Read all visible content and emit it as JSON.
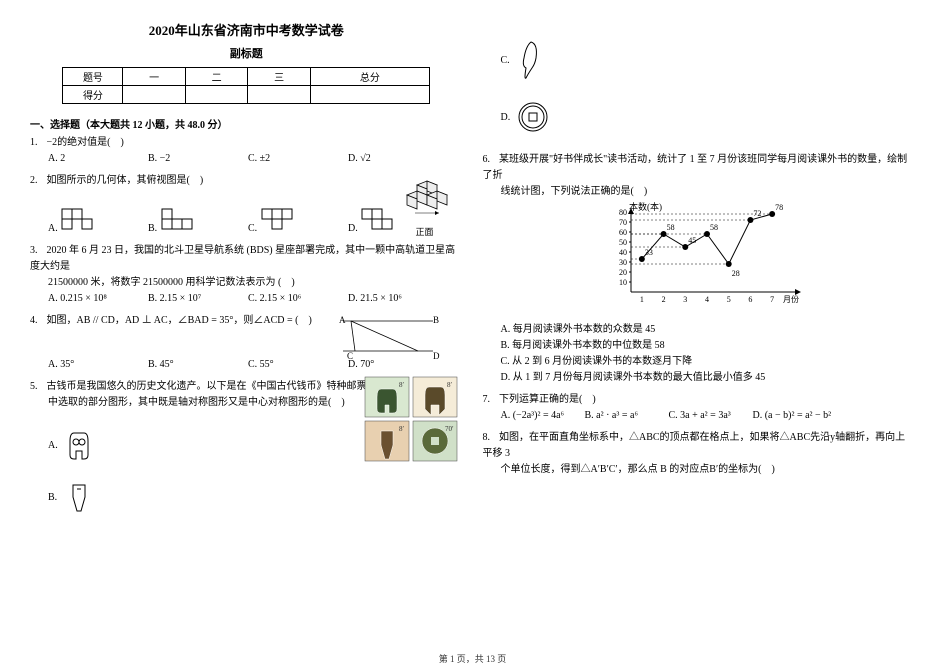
{
  "header": {
    "title": "2020年山东省济南市中考数学试卷",
    "subtitle": "副标题"
  },
  "score_table": {
    "row1": [
      "题号",
      "一",
      "二",
      "三",
      "总分"
    ],
    "row2": [
      "得分",
      "",
      "",
      "",
      ""
    ]
  },
  "section1": {
    "heading": "一、选择题（本大题共 12 小题，共 48.0 分）"
  },
  "questions": {
    "q1": {
      "num": "1.",
      "text": "−2的绝对值是(　)",
      "opts": {
        "a": "A. 2",
        "b": "B. −2",
        "c": "C. ±2",
        "d": "D. √2"
      }
    },
    "q2": {
      "num": "2.",
      "text": "如图所示的几何体，其俯视图是(　)",
      "front_label": "正面",
      "opts": {
        "a": "A.",
        "b": "B.",
        "c": "C.",
        "d": "D."
      }
    },
    "q3": {
      "num": "3.",
      "text_a": "2020 年 6 月 23 日，我国的北斗卫星导航系统 (BDS) 星座部署完成，其中一颗中高轨道卫星高度大约是",
      "text_b": "21500000 米，将数字 21500000 用科学记数法表示为 (　)",
      "opts": {
        "a": "A. 0.215 × 10⁸",
        "b": "B. 2.15 × 10⁷",
        "c": "C. 2.15 × 10⁶",
        "d": "D. 21.5 × 10⁶"
      }
    },
    "q4": {
      "num": "4.",
      "text": "如图，AB // CD，AD ⊥ AC，∠BAD = 35°，则∠ACD = (　)",
      "opts": {
        "a": "A. 35°",
        "b": "B. 45°",
        "c": "C. 55°",
        "d": "D. 70°"
      },
      "labels": {
        "A": "A",
        "B": "B",
        "C": "C",
        "D": "D"
      }
    },
    "q5": {
      "num": "5.",
      "text_a": "古钱币是我国悠久的历史文化遗产。以下是在《中国古代钱币》特种邮票",
      "text_b": "中选取的部分图形，其中既是轴对称图形又是中心对称图形的是(　)",
      "opts": {
        "a": "A.",
        "b": "B.",
        "c": "C.",
        "d": "D."
      },
      "stamp_vals": {
        "s1": "8′",
        "s2": "8′",
        "s3": "8′",
        "s4": "70′"
      }
    },
    "q6": {
      "num": "6.",
      "text_a": "某班级开展\"好书伴成长\"读书活动，统计了 1 至 7 月份该班同学每月阅读课外书的数量，绘制了折",
      "text_b": "线统计图，下列说法正确的是(　)",
      "chart": {
        "type": "line",
        "ylabel": "本数(本)",
        "xlabel": "月份",
        "x": [
          "1",
          "2",
          "3",
          "4",
          "5",
          "6",
          "7"
        ],
        "y": [
          33,
          58,
          45,
          58,
          28,
          72,
          78
        ],
        "point_labels": [
          "33",
          "58",
          "45",
          "58",
          "28",
          "72",
          "78"
        ],
        "ylim": [
          0,
          80
        ],
        "ytick_step": 10,
        "colors": {
          "line": "#000000",
          "grid": "#000000",
          "bg": "#ffffff",
          "text": "#000000"
        },
        "line_width": 1,
        "marker_size": 3
      },
      "opts": {
        "a": "A. 每月阅读课外书本数的众数是 45",
        "b": "B. 每月阅读课外书本数的中位数是 58",
        "c": "C. 从 2 到 6 月份阅读课外书的本数逐月下降",
        "d": "D. 从 1 到 7 月份每月阅读课外书本数的最大值比最小值多 45"
      }
    },
    "q7": {
      "num": "7.",
      "text": "下列运算正确的是(　)",
      "opts": {
        "a": "A. (−2a³)² = 4a⁶",
        "b": "B. a² · a³ = a⁶",
        "c": "C. 3a + a² = 3a³",
        "d": "D. (a − b)² = a² − b²"
      }
    },
    "q8": {
      "num": "8.",
      "text_a": "如图，在平面直角坐标系中，△ABC的顶点都在格点上，如果将△ABC先沿y轴翻折，再向上平移 3",
      "text_b": "个单位长度，得到△A′B′C′，那么点 B 的对应点B′的坐标为(　)"
    }
  },
  "footer": "第 1 页，共 13 页"
}
